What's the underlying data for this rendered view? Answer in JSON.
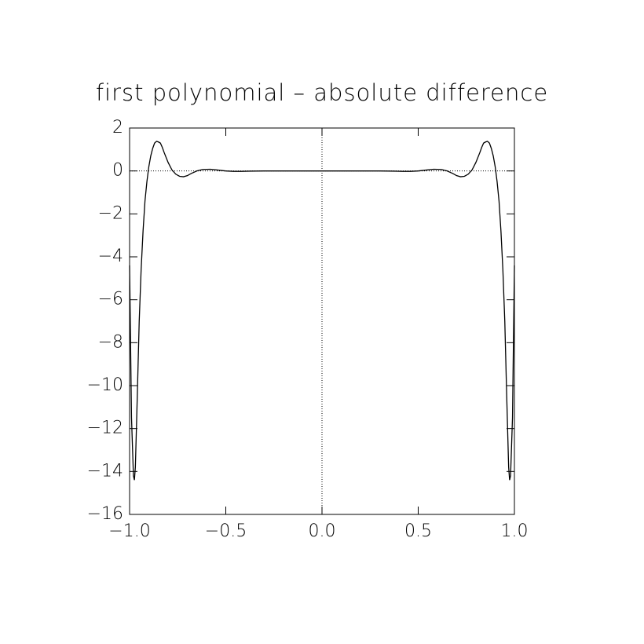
{
  "chart_data": {
    "type": "line",
    "title": "first polynomial – absolute difference",
    "x": [
      -1,
      -0.99,
      -0.98,
      -0.975,
      -0.97,
      -0.96,
      -0.95,
      -0.94,
      -0.93,
      -0.92,
      -0.91,
      -0.9,
      -0.89,
      -0.88,
      -0.87,
      -0.86,
      -0.85,
      -0.84,
      -0.83,
      -0.82,
      -0.8,
      -0.78,
      -0.76,
      -0.74,
      -0.72,
      -0.7,
      -0.68,
      -0.65,
      -0.62,
      -0.58,
      -0.54,
      -0.5,
      -0.46,
      -0.42,
      -0.38,
      -0.3,
      0,
      0.3,
      0.38,
      0.42,
      0.46,
      0.5,
      0.54,
      0.58,
      0.62,
      0.65,
      0.68,
      0.7,
      0.72,
      0.74,
      0.76,
      0.78,
      0.8,
      0.82,
      0.83,
      0.84,
      0.85,
      0.86,
      0.87,
      0.88,
      0.89,
      0.9,
      0.91,
      0.92,
      0.93,
      0.94,
      0.95,
      0.96,
      0.97,
      0.975,
      0.98,
      0.99,
      1
    ],
    "series": [
      {
        "color": "#000000",
        "values": [
          -4.4,
          -11.5,
          -14.2,
          -14.4,
          -13.8,
          -10.5,
          -7.0,
          -4.6,
          -2.8,
          -1.4,
          -0.5,
          0.2,
          0.7,
          1.05,
          1.3,
          1.38,
          1.35,
          1.3,
          1.1,
          0.85,
          0.4,
          0.05,
          -0.15,
          -0.25,
          -0.27,
          -0.22,
          -0.12,
          0.0,
          0.07,
          0.08,
          0.04,
          0.0,
          -0.02,
          -0.02,
          -0.01,
          0,
          0,
          0,
          -0.01,
          -0.02,
          -0.02,
          0.0,
          0.04,
          0.08,
          0.07,
          0.0,
          -0.12,
          -0.22,
          -0.27,
          -0.25,
          -0.15,
          0.05,
          0.4,
          0.85,
          1.1,
          1.3,
          1.35,
          1.38,
          1.3,
          1.05,
          0.7,
          0.2,
          -0.5,
          -1.4,
          -2.8,
          -4.6,
          -7.0,
          -10.5,
          -13.8,
          -14.4,
          -14.2,
          -11.5,
          -4.4
        ]
      }
    ],
    "xlim": [
      -1,
      1
    ],
    "ylim": [
      -16,
      2
    ],
    "xticks": [
      {
        "value": -1,
        "label": "−1.0"
      },
      {
        "value": -0.5,
        "label": "−0.5"
      },
      {
        "value": 0,
        "label": "0.0"
      },
      {
        "value": 0.5,
        "label": "0.5"
      },
      {
        "value": 1,
        "label": "1.0"
      }
    ],
    "yticks": [
      {
        "value": -16,
        "label": "−16"
      },
      {
        "value": -14,
        "label": "−14"
      },
      {
        "value": -12,
        "label": "−12"
      },
      {
        "value": -10,
        "label": "−10"
      },
      {
        "value": -8,
        "label": "−8"
      },
      {
        "value": -6,
        "label": "−6"
      },
      {
        "value": -4,
        "label": "−4"
      },
      {
        "value": -2,
        "label": "−2"
      },
      0,
      2
    ],
    "zero_lines": true
  }
}
